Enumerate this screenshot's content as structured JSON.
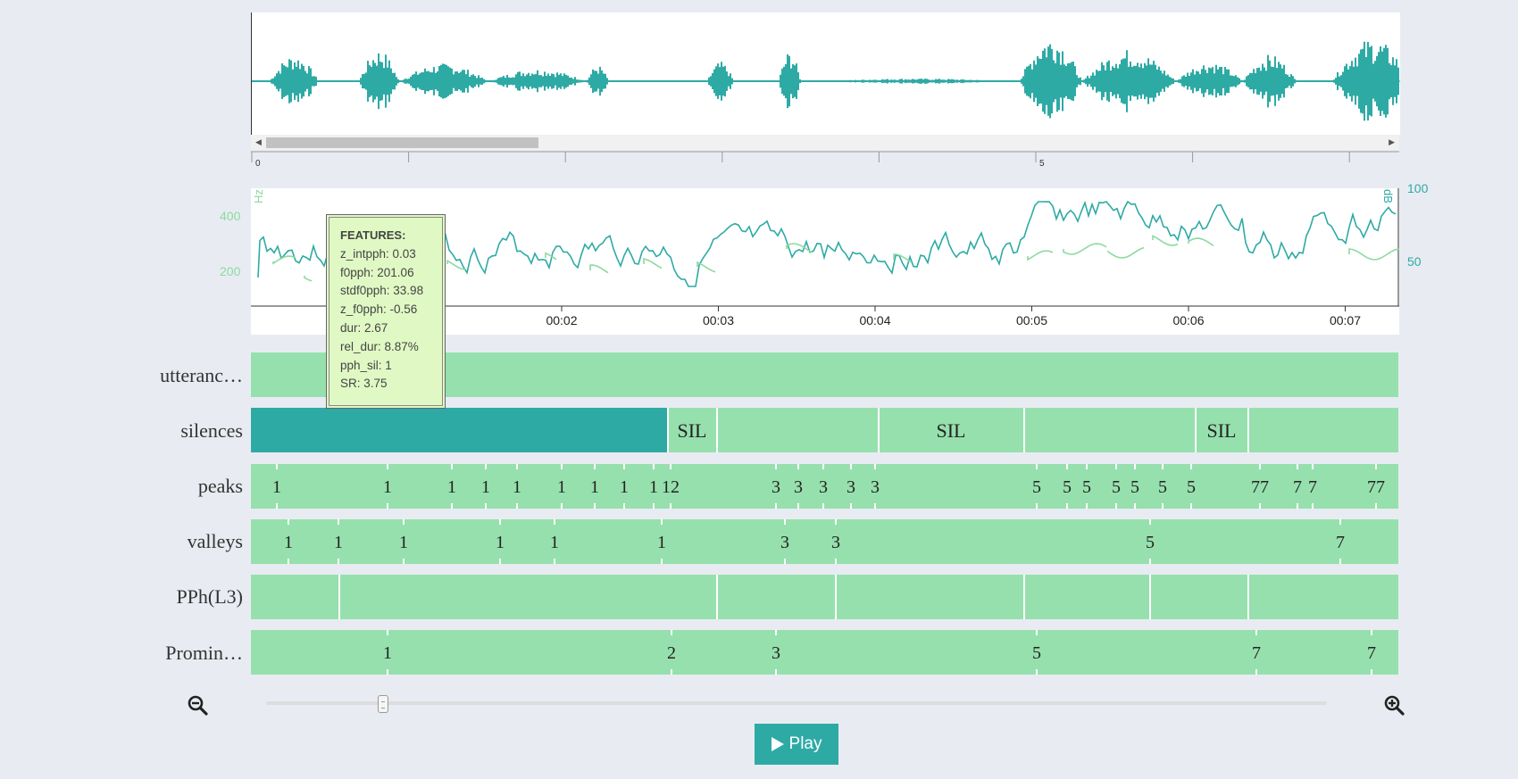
{
  "waveform": {
    "color": "#2eaaa5"
  },
  "timeline": {
    "ticks": [
      {
        "label": "0"
      },
      {
        "label": ""
      },
      {
        "label": ""
      },
      {
        "label": ""
      },
      {
        "label": ""
      },
      {
        "label": "5"
      },
      {
        "label": ""
      },
      {
        "label": ""
      }
    ]
  },
  "pitch": {
    "hz_unit": "Hz",
    "db_unit": "dB",
    "hz_ticks": [
      "400",
      "200"
    ],
    "db_ticks": [
      "100",
      "50"
    ],
    "time_ticks": [
      "00:02",
      "00:03",
      "00:04",
      "00:05",
      "00:06",
      "00:07"
    ],
    "intensity_color": "#2eaaa5",
    "f0_color": "#8ed9a0"
  },
  "tooltip": {
    "title": "FEATURES:",
    "lines": [
      "z_intpph: 0.03",
      "f0pph: 201.06",
      "stdf0pph: 33.98",
      "z_f0pph: -0.56",
      "dur: 2.67",
      "rel_dur: 8.87%",
      "pph_sil: 1",
      "SR: 3.75"
    ]
  },
  "tiers": {
    "utterance": {
      "label": "utteranc…"
    },
    "silences": {
      "label": "silences",
      "segments": [
        "SIL",
        "SIL",
        "SIL"
      ]
    },
    "peaks": {
      "label": "peaks",
      "marks": [
        "1",
        "1",
        "1",
        "1",
        "1",
        "1",
        "1",
        "1",
        "1",
        "12",
        "3",
        "3",
        "3",
        "3",
        "3",
        "5",
        "5",
        "5",
        "5",
        "5",
        "5",
        "5",
        "77",
        "7",
        "7",
        "77"
      ]
    },
    "valleys": {
      "label": "valleys",
      "marks": [
        "1",
        "1",
        "1",
        "1",
        "1",
        "1",
        "3",
        "3",
        "5",
        "7"
      ]
    },
    "pph": {
      "label": "PPh(L3)"
    },
    "prominence": {
      "label": "Promin…",
      "marks": [
        "1",
        "2",
        "3",
        "5",
        "7",
        "7"
      ]
    }
  },
  "controls": {
    "play_label": "Play"
  },
  "colors": {
    "tier_fill": "#96e0ad",
    "selected": "#2eaaa5",
    "background": "#e8ecf2"
  }
}
